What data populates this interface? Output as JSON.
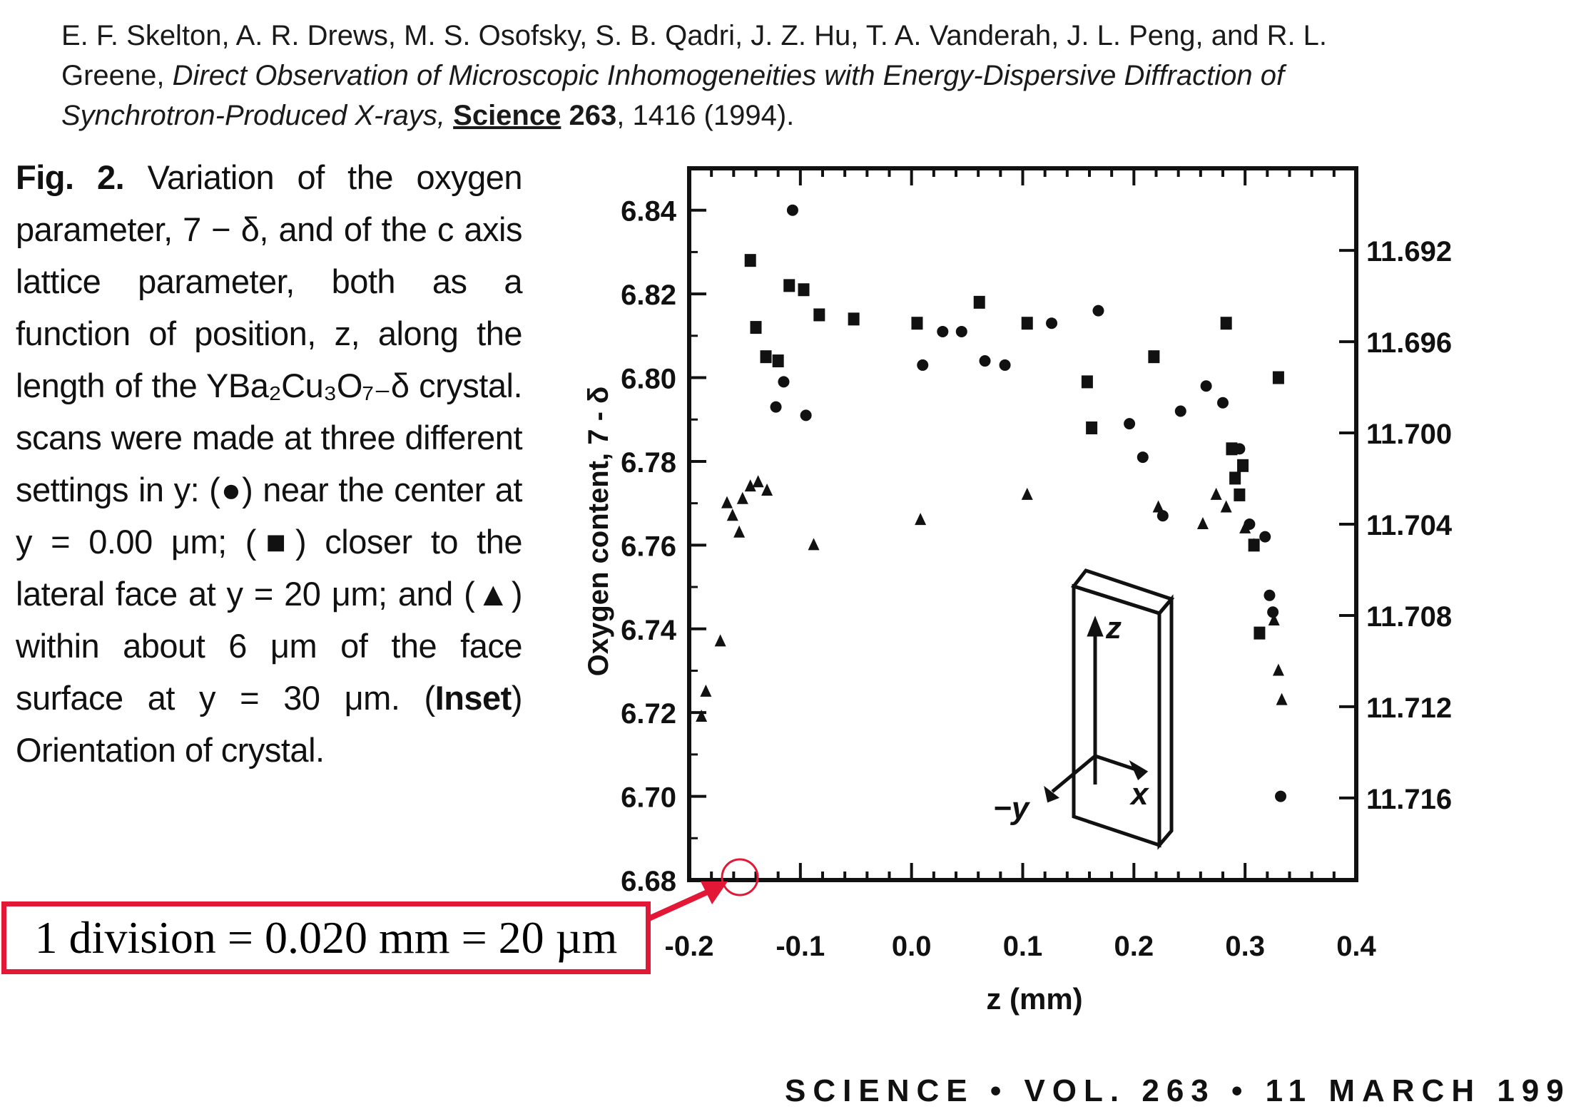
{
  "citation": {
    "authors": "E. F. Skelton, A. R. Drews, M. S. Osofsky, S. B. Qadri, J. Z. Hu, T. A. Vanderah, J. L. Peng, and R. L. Greene,",
    "title": "Direct Observation of Microscopic Inhomogeneities with Energy-Dispersive Diffraction of Synchrotron-Produced X-rays,",
    "journal": "Science",
    "volume": "263",
    "rest": ", 1416 (1994)."
  },
  "caption": {
    "fig_label": "Fig. 2.",
    "part1": "Variation of the oxygen parameter, 7 − δ, and of the c axis lattice parameter, both as a function of position, z, along the length of the YBa₂Cu₃O₇₋δ crystal. scans were made at three different settings in y: (●) near the center at y = 0.00 μm; (■) closer to the lateral face at y = 20 μm; and (▲) within about 6 μm of the face surface at y = 30 μm. (",
    "inset_word": "Inset",
    "part2": ") Orientation of crystal."
  },
  "scale_note": "1 division = 0.020 mm = 20 µm",
  "footer": "SCIENCE • VOL. 263 • 11 MARCH 199",
  "inset_labels": {
    "z": "z",
    "x": "x",
    "y": "−y"
  },
  "colors": {
    "accent": "#e31837",
    "ink": "#111111"
  },
  "chart_data": {
    "type": "scatter",
    "xlabel": "z (mm)",
    "ylabel": "Oxygen content, 7 - δ",
    "xlim": [
      -0.2,
      0.4
    ],
    "ylim": [
      6.68,
      6.85
    ],
    "x_ticks": [
      "-0.2",
      "-0.1",
      "0.0",
      "0.1",
      "0.2",
      "0.3",
      "0.4"
    ],
    "x_tick_values": [
      -0.2,
      -0.1,
      0.0,
      0.1,
      0.2,
      0.3,
      0.4
    ],
    "y_ticks": [
      "6.68",
      "6.70",
      "6.72",
      "6.74",
      "6.76",
      "6.78",
      "6.80",
      "6.82",
      "6.84"
    ],
    "y_tick_values": [
      6.68,
      6.7,
      6.72,
      6.74,
      6.76,
      6.78,
      6.8,
      6.82,
      6.84
    ],
    "y2_ticks": [
      "11.692",
      "11.696",
      "11.700",
      "11.704",
      "11.708",
      "11.712",
      "11.716"
    ],
    "y2_tick_values": [
      11.692,
      11.696,
      11.7,
      11.704,
      11.708,
      11.712,
      11.716
    ],
    "y2lim": [
      11.6884,
      11.7196
    ],
    "series": [
      {
        "marker": "circle",
        "points": [
          [
            -0.107,
            6.84
          ],
          [
            -0.122,
            6.793
          ],
          [
            -0.115,
            6.799
          ],
          [
            -0.095,
            6.791
          ],
          [
            0.01,
            6.803
          ],
          [
            0.028,
            6.811
          ],
          [
            0.045,
            6.811
          ],
          [
            0.066,
            6.804
          ],
          [
            0.084,
            6.803
          ],
          [
            0.126,
            6.813
          ],
          [
            0.168,
            6.816
          ],
          [
            0.196,
            6.789
          ],
          [
            0.208,
            6.781
          ],
          [
            0.226,
            6.767
          ],
          [
            0.242,
            6.792
          ],
          [
            0.265,
            6.798
          ],
          [
            0.28,
            6.794
          ],
          [
            0.295,
            6.783
          ],
          [
            0.304,
            6.765
          ],
          [
            0.318,
            6.762
          ],
          [
            0.322,
            6.748
          ],
          [
            0.325,
            6.744
          ],
          [
            0.332,
            6.7
          ]
        ]
      },
      {
        "marker": "square",
        "points": [
          [
            -0.145,
            6.828
          ],
          [
            -0.14,
            6.812
          ],
          [
            -0.131,
            6.805
          ],
          [
            -0.12,
            6.804
          ],
          [
            -0.11,
            6.822
          ],
          [
            -0.097,
            6.821
          ],
          [
            -0.083,
            6.815
          ],
          [
            -0.052,
            6.814
          ],
          [
            0.005,
            6.813
          ],
          [
            0.061,
            6.818
          ],
          [
            0.104,
            6.813
          ],
          [
            0.158,
            6.799
          ],
          [
            0.162,
            6.788
          ],
          [
            0.218,
            6.805
          ],
          [
            0.283,
            6.813
          ],
          [
            0.288,
            6.783
          ],
          [
            0.291,
            6.776
          ],
          [
            0.295,
            6.772
          ],
          [
            0.298,
            6.779
          ],
          [
            0.308,
            6.76
          ],
          [
            0.313,
            6.739
          ],
          [
            0.33,
            6.8
          ]
        ]
      },
      {
        "marker": "triangle",
        "points": [
          [
            -0.189,
            6.719
          ],
          [
            -0.185,
            6.725
          ],
          [
            -0.172,
            6.737
          ],
          [
            -0.166,
            6.77
          ],
          [
            -0.161,
            6.767
          ],
          [
            -0.155,
            6.763
          ],
          [
            -0.152,
            6.771
          ],
          [
            -0.145,
            6.774
          ],
          [
            -0.138,
            6.775
          ],
          [
            -0.13,
            6.773
          ],
          [
            -0.088,
            6.76
          ],
          [
            0.008,
            6.766
          ],
          [
            0.104,
            6.772
          ],
          [
            0.222,
            6.769
          ],
          [
            0.262,
            6.765
          ],
          [
            0.274,
            6.772
          ],
          [
            0.283,
            6.769
          ],
          [
            0.3,
            6.764
          ],
          [
            0.308,
            6.76
          ],
          [
            0.326,
            6.742
          ],
          [
            0.33,
            6.73
          ],
          [
            0.333,
            6.723
          ]
        ]
      }
    ]
  }
}
